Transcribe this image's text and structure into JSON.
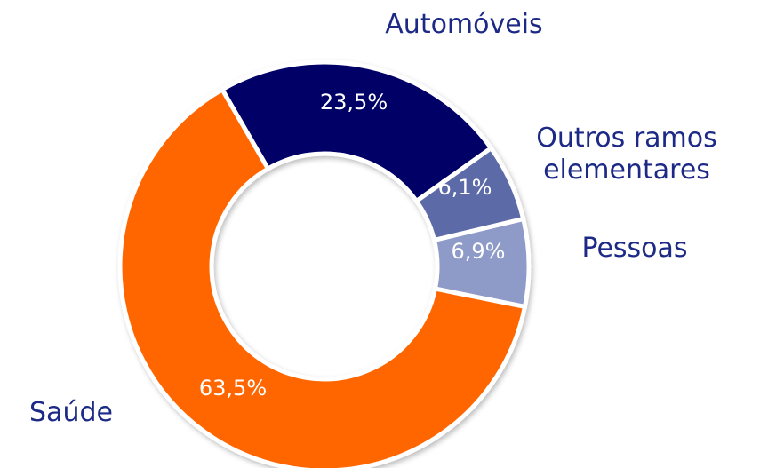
{
  "chart_data": {
    "type": "donut",
    "categories": [
      "Automóveis",
      "Outros ramos elementares",
      "Pessoas",
      "Saúde"
    ],
    "values": [
      23.5,
      6.1,
      6.9,
      63.5
    ],
    "value_labels": [
      "23,5%",
      "6,1%",
      "6,9%",
      "63,5%"
    ],
    "colors": [
      "#000066",
      "#5b6aa8",
      "#8e9ac8",
      "#ff6600"
    ]
  }
}
